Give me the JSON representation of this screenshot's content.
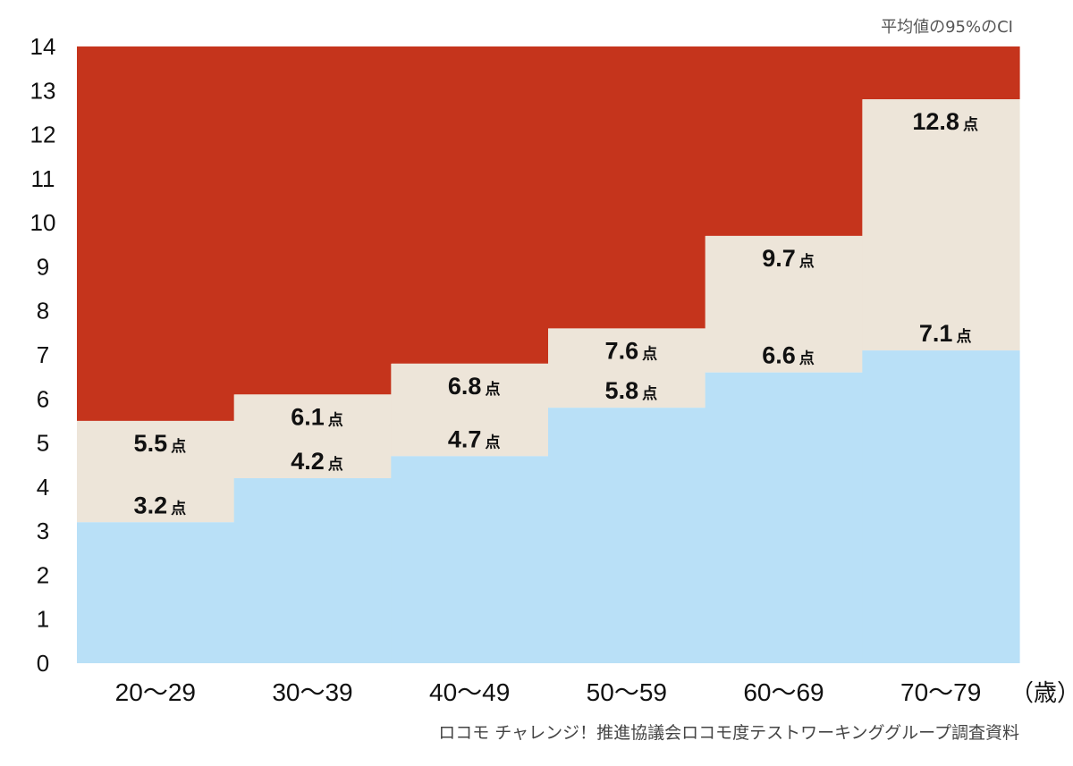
{
  "chart_data": {
    "type": "area",
    "step": true,
    "categories": [
      "20〜29",
      "30〜39",
      "40〜49",
      "50〜59",
      "60〜69",
      "70〜79"
    ],
    "x_unit_label": "（歳）",
    "y_ticks": [
      "0",
      "1",
      "2",
      "3",
      "4",
      "5",
      "6",
      "7",
      "8",
      "9",
      "10",
      "11",
      "12",
      "13",
      "14"
    ],
    "ylim": [
      0,
      14
    ],
    "series": [
      {
        "role": "lower",
        "values": [
          3.2,
          4.2,
          4.7,
          5.8,
          6.6,
          7.1
        ],
        "labels": [
          "3.2",
          "4.2",
          "4.7",
          "5.8",
          "6.6",
          "7.1"
        ]
      },
      {
        "role": "upper",
        "values": [
          5.5,
          6.1,
          6.8,
          7.6,
          9.7,
          12.8
        ],
        "labels": [
          "5.5",
          "6.1",
          "6.8",
          "7.6",
          "9.7",
          "12.8"
        ]
      }
    ],
    "value_unit": "点",
    "annotation": "平均値の95%のCI",
    "source": "ロコモ チャレンジ！推進協議会ロコモ度テストワーキンググループ調査資料",
    "colors": {
      "below_lower": "#b9e0f7",
      "ci_band": "#ede5d9",
      "above_upper": "#c5341c"
    },
    "grid": false
  }
}
